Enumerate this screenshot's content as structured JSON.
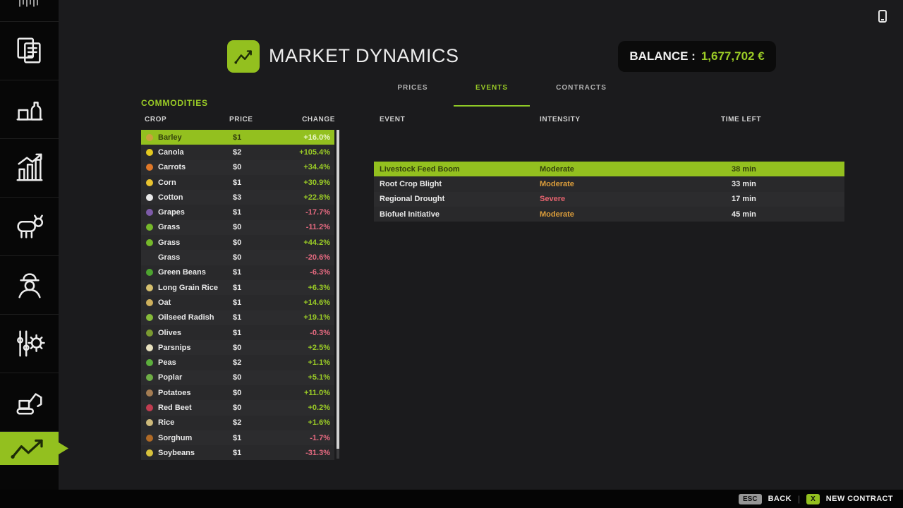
{
  "header": {
    "title": "MARKET DYNAMICS",
    "balance_label": "BALANCE :",
    "balance_value": "1,677,702 €"
  },
  "tabs": {
    "items": [
      {
        "label": "PRICES",
        "active": false
      },
      {
        "label": "EVENTS",
        "active": true
      },
      {
        "label": "CONTRACTS",
        "active": false
      }
    ]
  },
  "commodities": {
    "title": "COMMODITIES",
    "columns": {
      "crop": "CROP",
      "price": "PRICE",
      "change": "CHANGE"
    },
    "rows": [
      {
        "crop": "Barley",
        "price": "$1",
        "change": "+16.0%",
        "trend": "up",
        "selected": true,
        "icon_color": "#caa23c"
      },
      {
        "crop": "Canola",
        "price": "$2",
        "change": "+105.4%",
        "trend": "up",
        "icon_color": "#e3c81f"
      },
      {
        "crop": "Carrots",
        "price": "$0",
        "change": "+34.4%",
        "trend": "up",
        "icon_color": "#e07828"
      },
      {
        "crop": "Corn",
        "price": "$1",
        "change": "+30.9%",
        "trend": "up",
        "icon_color": "#e8c32f"
      },
      {
        "crop": "Cotton",
        "price": "$3",
        "change": "+22.8%",
        "trend": "up",
        "icon_color": "#eaeaea"
      },
      {
        "crop": "Grapes",
        "price": "$1",
        "change": "-17.7%",
        "trend": "down",
        "icon_color": "#7d5aa8"
      },
      {
        "crop": "Grass",
        "price": "$0",
        "change": "-11.2%",
        "trend": "down",
        "icon_color": "#76b82a"
      },
      {
        "crop": "Grass",
        "price": "$0",
        "change": "+44.2%",
        "trend": "up",
        "icon_color": "#76b82a"
      },
      {
        "crop": "Grass",
        "price": "$0",
        "change": "-20.6%",
        "trend": "down",
        "icon_color": null
      },
      {
        "crop": "Green Beans",
        "price": "$1",
        "change": "-6.3%",
        "trend": "down",
        "icon_color": "#4da32f"
      },
      {
        "crop": "Long Grain Rice",
        "price": "$1",
        "change": "+6.3%",
        "trend": "up",
        "icon_color": "#d6c06e"
      },
      {
        "crop": "Oat",
        "price": "$1",
        "change": "+14.6%",
        "trend": "up",
        "icon_color": "#cdb05c"
      },
      {
        "crop": "Oilseed Radish",
        "price": "$1",
        "change": "+19.1%",
        "trend": "up",
        "icon_color": "#86bb3a"
      },
      {
        "crop": "Olives",
        "price": "$1",
        "change": "-0.3%",
        "trend": "down",
        "icon_color": "#7a9a30"
      },
      {
        "crop": "Parsnips",
        "price": "$0",
        "change": "+2.5%",
        "trend": "up",
        "icon_color": "#e9e2c0"
      },
      {
        "crop": "Peas",
        "price": "$2",
        "change": "+1.1%",
        "trend": "up",
        "icon_color": "#5cae3c"
      },
      {
        "crop": "Poplar",
        "price": "$0",
        "change": "+5.1%",
        "trend": "up",
        "icon_color": "#6fae46"
      },
      {
        "crop": "Potatoes",
        "price": "$0",
        "change": "+11.0%",
        "trend": "up",
        "icon_color": "#a37c52"
      },
      {
        "crop": "Red Beet",
        "price": "$0",
        "change": "+0.2%",
        "trend": "up",
        "icon_color": "#c13c50"
      },
      {
        "crop": "Rice",
        "price": "$2",
        "change": "+1.6%",
        "trend": "up",
        "icon_color": "#cdb97a"
      },
      {
        "crop": "Sorghum",
        "price": "$1",
        "change": "-1.7%",
        "trend": "down",
        "icon_color": "#b06a26"
      },
      {
        "crop": "Soybeans",
        "price": "$1",
        "change": "-31.3%",
        "trend": "down",
        "icon_color": "#d8c23c"
      }
    ]
  },
  "events": {
    "columns": {
      "event": "EVENT",
      "intensity": "INTENSITY",
      "time_left": "TIME LEFT"
    },
    "rows": [
      {
        "event": "Livestock Feed Boom",
        "intensity": "Moderate",
        "severity": "moderate",
        "time_left": "38 min",
        "selected": true
      },
      {
        "event": "Root Crop Blight",
        "intensity": "Moderate",
        "severity": "moderate",
        "time_left": "33 min",
        "selected": false
      },
      {
        "event": "Regional Drought",
        "intensity": "Severe",
        "severity": "severe",
        "time_left": "17 min",
        "selected": false
      },
      {
        "event": "Biofuel Initiative",
        "intensity": "Moderate",
        "severity": "moderate",
        "time_left": "45 min",
        "selected": false
      }
    ]
  },
  "footer": {
    "back_key": "ESC",
    "back_label": "BACK",
    "divider": "|",
    "contract_key": "X",
    "contract_label": "NEW CONTRACT"
  },
  "sidebar": {
    "items": [
      {
        "icon": "barcode-icon",
        "active": false
      },
      {
        "icon": "documents-icon",
        "active": false
      },
      {
        "icon": "production-icon",
        "active": false
      },
      {
        "icon": "bar-chart-icon",
        "active": false
      },
      {
        "icon": "animals-icon",
        "active": false
      },
      {
        "icon": "farmer-icon",
        "active": false
      },
      {
        "icon": "gear-icon",
        "active": false
      },
      {
        "icon": "excavator-icon",
        "active": false
      },
      {
        "icon": "chart-line-icon",
        "active": true
      }
    ]
  },
  "colors": {
    "accent": "#93c01f",
    "positive": "#9bcc26",
    "negative": "#e66a80",
    "moderate": "#dd9e3b",
    "severe": "#e4636e"
  }
}
